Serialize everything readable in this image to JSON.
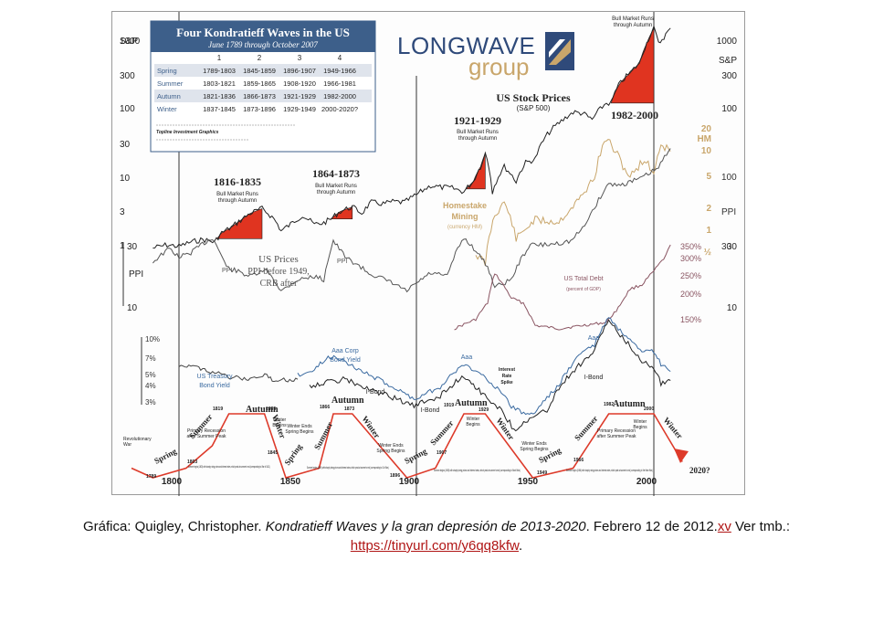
{
  "chart_data": {
    "type": "line",
    "title": "Four Kondratieff Waves in the US",
    "subtitle": "June 1789 through October 2007",
    "logo": {
      "line1": "LONGWAVE",
      "line2": "group"
    },
    "table": {
      "columns": [
        "1",
        "2",
        "3",
        "4"
      ],
      "rows": [
        {
          "season": "Spring",
          "values": [
            "1789-1803",
            "1845-1859",
            "1896-1907",
            "1949-1966"
          ]
        },
        {
          "season": "Summer",
          "values": [
            "1803-1821",
            "1859-1865",
            "1908-1920",
            "1966-1981"
          ]
        },
        {
          "season": "Autumn",
          "values": [
            "1821-1836",
            "1866-1873",
            "1921-1929",
            "1982-2000"
          ]
        },
        {
          "season": "Winter",
          "values": [
            "1837-1845",
            "1873-1896",
            "1929-1949",
            "2000-2020?"
          ]
        }
      ],
      "note_bold": "Topline Investment Graphics"
    },
    "x_ticks": [
      "1800",
      "1850",
      "1900",
      "1950",
      "2000"
    ],
    "x_tick_years": [
      1800,
      1850,
      1900,
      1950,
      2000
    ],
    "xlim": [
      1789,
      2008
    ],
    "left_axis_top": {
      "label": "S&P",
      "ticks": [
        "1000",
        "300",
        "100",
        "30",
        "10",
        "3",
        "1"
      ]
    },
    "right_axis_top": {
      "label": "S&P",
      "ticks": [
        "1000",
        "300",
        "100",
        "30",
        "10"
      ]
    },
    "left_axis_ppi": {
      "label": "PPI",
      "ticks": [
        "30",
        "10"
      ]
    },
    "hm_axis": {
      "label": "HM",
      "ticks": [
        "20",
        "10",
        "5",
        "2",
        "1",
        "½"
      ]
    },
    "ppi_right": {
      "label": "PPI",
      "ticks": [
        "100",
        "30"
      ]
    },
    "debt_axis": {
      "ticks": [
        "350%",
        "300%",
        "250%",
        "200%",
        "150%"
      ]
    },
    "yield_axis": {
      "ticks": [
        "10%",
        "7%",
        "5%",
        "4%",
        "3%"
      ]
    },
    "annotations": {
      "stock_title": "US Stock Prices",
      "stock_sub": "(S&P 500)",
      "bull1_years": "1816-1835",
      "bull2_years": "1864-1873",
      "bull3_years": "1921-1929",
      "bull4_years": "1982-2000",
      "bull_label_a": "Bull Market Runs",
      "bull_label_b": "through Autumn",
      "homestake_a": "Homestake",
      "homestake_b": "Mining",
      "homestake_c": "(currency HM)",
      "us_prices_a": "US Prices",
      "us_prices_b": "PPI before 1949,",
      "us_prices_c": "CRB after",
      "ppi": "PPI",
      "debt_a": "US Total Debt",
      "debt_b": "(percent of GDP)",
      "treasury_a": "US Treasury",
      "treasury_b": "Bond Yield",
      "aaa_a": "Aaa Corp",
      "aaa_b": "Bond Yield",
      "aaa": "Aaa",
      "ibond": "I-Bond",
      "interest_a": "Interest",
      "interest_b": "Rate",
      "interest_c": "Spike",
      "autumn": "Autumn",
      "spring": "Spring",
      "summer": "Summer",
      "winter": "Winter",
      "revolutionary_a": "Revolutionary",
      "revolutionary_b": "War",
      "primary_rec_a": "Primary Recession",
      "primary_rec_b": "after Summer Peak",
      "winter_begins_a": "Winter",
      "winter_begins_b": "Begins",
      "winter_ends_a": "Winter Ends",
      "winter_ends_b": "Spring Begins",
      "forecast": "2020?",
      "peaks": [
        "1819",
        "1835",
        "1837",
        "1845",
        "1865",
        "1866",
        "1873",
        "1919",
        "1920",
        "1929",
        "1949",
        "1981",
        "1982",
        "2000",
        "1789",
        "1803",
        "1896",
        "1907",
        "1966"
      ],
      "wave_text_1": "Summer begins (1803) with sharply rising prices and interest rates, which peak at summer's end (corresponding to War of 1812).",
      "wave_text_2": "Summer begins (1859) with sharply rising prices and interest rates, which peak at summer's end (corresponding to Civil War).",
      "wave_text_3": "Summer begins (1908) with sharply rising prices and interest rates, which peak at summer's end (corresponding to World War).",
      "wave_text_4": "Summer begins (1966) with sharply rising prices and interest rates, which peak at summer's end (corresponding to Viet Nam War)."
    },
    "sp500": [
      [
        1789,
        0.9
      ],
      [
        1795,
        1.0
      ],
      [
        1800,
        0.95
      ],
      [
        1805,
        1.1
      ],
      [
        1810,
        1.2
      ],
      [
        1815,
        1.1
      ],
      [
        1818,
        1.5
      ],
      [
        1822,
        1.8
      ],
      [
        1826,
        2.3
      ],
      [
        1830,
        2.9
      ],
      [
        1835,
        3.4
      ],
      [
        1840,
        2.4
      ],
      [
        1843,
        1.6
      ],
      [
        1847,
        2.0
      ],
      [
        1852,
        2.7
      ],
      [
        1857,
        2.0
      ],
      [
        1861,
        2.1
      ],
      [
        1864,
        2.4
      ],
      [
        1868,
        3.1
      ],
      [
        1873,
        3.6
      ],
      [
        1877,
        2.9
      ],
      [
        1881,
        4.2
      ],
      [
        1886,
        4.0
      ],
      [
        1890,
        4.3
      ],
      [
        1895,
        4.2
      ],
      [
        1900,
        5.4
      ],
      [
        1906,
        7.4
      ],
      [
        1910,
        7.0
      ],
      [
        1915,
        6.8
      ],
      [
        1920,
        6.0
      ],
      [
        1924,
        8.5
      ],
      [
        1927,
        14
      ],
      [
        1929,
        22
      ],
      [
        1932,
        6
      ],
      [
        1937,
        14
      ],
      [
        1942,
        8.5
      ],
      [
        1946,
        16
      ],
      [
        1950,
        18
      ],
      [
        1956,
        45
      ],
      [
        1961,
        65
      ],
      [
        1966,
        88
      ],
      [
        1970,
        85
      ],
      [
        1974,
        68
      ],
      [
        1980,
        120
      ],
      [
        1982,
        120
      ],
      [
        1986,
        240
      ],
      [
        1990,
        330
      ],
      [
        1994,
        460
      ],
      [
        1997,
        900
      ],
      [
        2000,
        1480
      ],
      [
        2002,
        880
      ],
      [
        2005,
        1200
      ],
      [
        2007,
        1500
      ]
    ],
    "homestake": [
      [
        1925,
        2.2
      ],
      [
        1929,
        1.8
      ],
      [
        1933,
        5.0
      ],
      [
        1937,
        6.5
      ],
      [
        1942,
        3.0
      ],
      [
        1950,
        4.5
      ],
      [
        1960,
        4.3
      ],
      [
        1966,
        6.0
      ],
      [
        1970,
        7.5
      ],
      [
        1975,
        11
      ],
      [
        1980,
        25
      ],
      [
        1983,
        20
      ],
      [
        1987,
        14
      ],
      [
        1990,
        11
      ],
      [
        1996,
        16
      ],
      [
        2000,
        12
      ],
      [
        2003,
        22
      ],
      [
        2007,
        19
      ]
    ],
    "ppi_series": [
      [
        1789,
        22
      ],
      [
        1796,
        28
      ],
      [
        1800,
        24
      ],
      [
        1805,
        26
      ],
      [
        1814,
        34
      ],
      [
        1820,
        20
      ],
      [
        1830,
        17
      ],
      [
        1837,
        19
      ],
      [
        1843,
        13
      ],
      [
        1850,
        16
      ],
      [
        1857,
        17
      ],
      [
        1861,
        16
      ],
      [
        1865,
        32
      ],
      [
        1870,
        24
      ],
      [
        1880,
        18
      ],
      [
        1890,
        15
      ],
      [
        1896,
        13
      ],
      [
        1906,
        18
      ],
      [
        1913,
        17
      ],
      [
        1920,
        34
      ],
      [
        1930,
        20
      ],
      [
        1933,
        14
      ],
      [
        1940,
        16
      ],
      [
        1948,
        30
      ],
      [
        1955,
        30
      ],
      [
        1965,
        32
      ],
      [
        1970,
        40
      ],
      [
        1975,
        58
      ],
      [
        1981,
        90
      ],
      [
        1986,
        88
      ],
      [
        1995,
        100
      ],
      [
        2002,
        120
      ],
      [
        2007,
        170
      ]
    ],
    "debt_pct": [
      [
        1916,
        145
      ],
      [
        1925,
        160
      ],
      [
        1930,
        190
      ],
      [
        1933,
        260
      ],
      [
        1940,
        200
      ],
      [
        1945,
        190
      ],
      [
        1950,
        150
      ],
      [
        1960,
        145
      ],
      [
        1970,
        150
      ],
      [
        1980,
        155
      ],
      [
        1985,
        180
      ],
      [
        1990,
        220
      ],
      [
        1995,
        230
      ],
      [
        2000,
        265
      ],
      [
        2005,
        310
      ],
      [
        2007,
        350
      ]
    ],
    "treasury_yield": [
      [
        1800,
        6.2
      ],
      [
        1810,
        5.8
      ],
      [
        1820,
        5.0
      ],
      [
        1830,
        4.8
      ],
      [
        1837,
        5.2
      ],
      [
        1840,
        4.7
      ],
      [
        1850,
        4.8
      ]
    ],
    "aaa_yield": [
      [
        1850,
        5.2
      ],
      [
        1857,
        5.6
      ],
      [
        1862,
        6.9
      ],
      [
        1866,
        7.2
      ],
      [
        1873,
        6.0
      ],
      [
        1880,
        5.2
      ],
      [
        1890,
        4.2
      ],
      [
        1899,
        3.4
      ],
      [
        1910,
        4.2
      ],
      [
        1920,
        6.2
      ],
      [
        1929,
        5.0
      ],
      [
        1940,
        3.0
      ],
      [
        1946,
        2.6
      ],
      [
        1950,
        2.7
      ],
      [
        1960,
        4.3
      ],
      [
        1970,
        7.8
      ],
      [
        1975,
        8.7
      ],
      [
        1981,
        14.0
      ],
      [
        1985,
        11.5
      ],
      [
        1990,
        9.3
      ],
      [
        1995,
        7.6
      ],
      [
        2000,
        7.8
      ],
      [
        2003,
        6.2
      ],
      [
        2007,
        5.5
      ]
    ],
    "ibond_yield": [
      [
        1855,
        4.3
      ],
      [
        1870,
        4.8
      ],
      [
        1880,
        4.0
      ],
      [
        1890,
        3.5
      ],
      [
        1899,
        3.0
      ],
      [
        1910,
        3.6
      ],
      [
        1920,
        5.1
      ],
      [
        1928,
        3.7
      ],
      [
        1935,
        2.9
      ],
      [
        1941,
        2.0
      ],
      [
        1946,
        2.3
      ],
      [
        1955,
        2.8
      ],
      [
        1960,
        4.1
      ],
      [
        1970,
        6.5
      ],
      [
        1975,
        7.8
      ],
      [
        1981,
        13.5
      ],
      [
        1985,
        10.5
      ],
      [
        1990,
        8.5
      ],
      [
        1995,
        6.5
      ],
      [
        2000,
        6.0
      ],
      [
        2003,
        4.5
      ],
      [
        2007,
        4.7
      ]
    ],
    "wave_path": [
      [
        1780,
        3
      ],
      [
        1789,
        0
      ],
      [
        1803,
        3
      ],
      [
        1814,
        10
      ],
      [
        1821,
        20
      ],
      [
        1836,
        20
      ],
      [
        1845,
        0
      ],
      [
        1859,
        3
      ],
      [
        1865,
        20
      ],
      [
        1873,
        20
      ],
      [
        1896,
        0
      ],
      [
        1908,
        3
      ],
      [
        1920,
        20
      ],
      [
        1929,
        20
      ],
      [
        1949,
        0
      ],
      [
        1966,
        3
      ],
      [
        1981,
        20
      ],
      [
        2000,
        20
      ],
      [
        2012,
        5
      ]
    ],
    "colors": {
      "accent_red": "#e03420",
      "gold": "#c9a66b",
      "blue": "#3a6aa0",
      "maroon": "#8a5562",
      "dark": "#333333",
      "grey": "#666666",
      "table_header": "#3d5f8a",
      "wave": "#dd3a2a"
    }
  },
  "caption": {
    "prefix": "Gráfica: Quigley, Christopher.",
    "title": "Kondratieff Waves y la gran depresión de 2013-2020",
    "date": ". Febrero 12 de 2012.",
    "ref": "xv",
    "see": "Ver tmb.:",
    "url": "https://tinyurl.com/y6qq8kfw",
    "end": "."
  }
}
